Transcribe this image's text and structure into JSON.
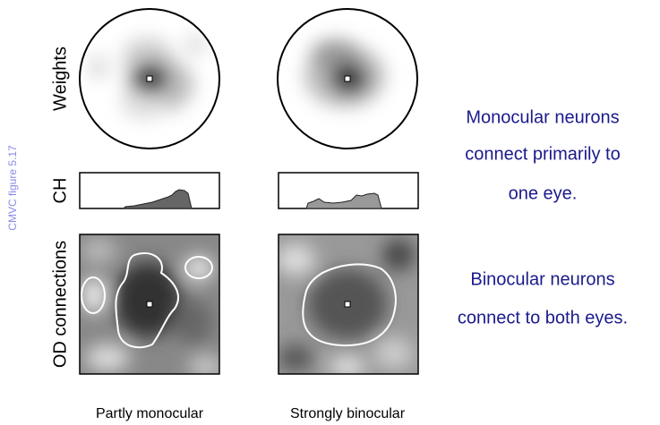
{
  "side_label": "CMVC figure 5.17",
  "row_labels": [
    "Weights",
    "CH",
    "OD connections"
  ],
  "column_labels": [
    "Partly monocular",
    "Strongly binocular"
  ],
  "notes": [
    {
      "lines": [
        "Monocular neurons",
        "connect primarily to",
        "one eye."
      ]
    },
    {
      "lines": [
        "Binocular neurons",
        "connect to both eyes."
      ]
    }
  ]
}
